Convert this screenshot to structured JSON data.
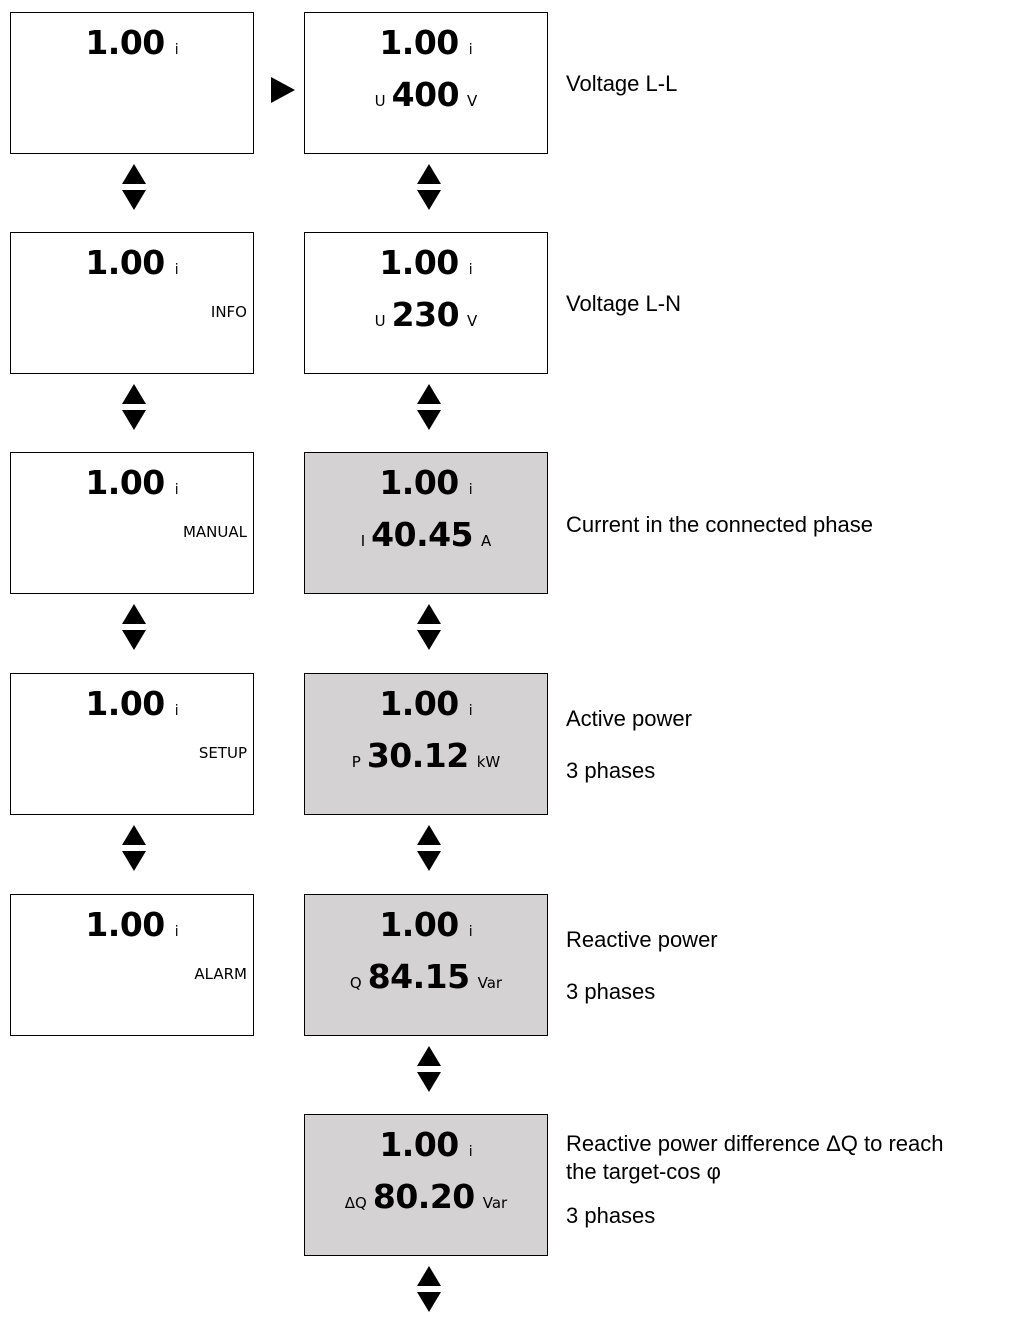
{
  "left_column": [
    {
      "cos": "1.00",
      "ind": "i",
      "label": ""
    },
    {
      "cos": "1.00",
      "ind": "i",
      "label": "INFO"
    },
    {
      "cos": "1.00",
      "ind": "i",
      "label": "MANUAL"
    },
    {
      "cos": "1.00",
      "ind": "i",
      "label": "SETUP"
    },
    {
      "cos": "1.00",
      "ind": "i",
      "label": "ALARM"
    }
  ],
  "right_column": [
    {
      "cos": "1.00",
      "ind": "i",
      "sym": "U",
      "value": "400",
      "unit": "V",
      "desc1": "Voltage L-L",
      "desc2": "",
      "desc3": ""
    },
    {
      "cos": "1.00",
      "ind": "i",
      "sym": "U",
      "value": "230",
      "unit": "V",
      "desc1": "Voltage L-N",
      "desc2": "",
      "desc3": ""
    },
    {
      "cos": "1.00",
      "ind": "i",
      "sym": "I",
      "value": "40.45",
      "unit": "A",
      "desc1": "Current in the connected phase",
      "desc2": "",
      "desc3": ""
    },
    {
      "cos": "1.00",
      "ind": "i",
      "sym": "P",
      "value": "30.12",
      "unit": "kW",
      "desc1": "Active power",
      "desc2": "3 phases",
      "desc3": ""
    },
    {
      "cos": "1.00",
      "ind": "i",
      "sym": "Q",
      "value": "84.15",
      "unit": "Var",
      "desc1": "Reactive power",
      "desc2": "3 phases",
      "desc3": ""
    },
    {
      "cos": "1.00",
      "ind": "i",
      "sym": "ΔQ",
      "value": "80.20",
      "unit": "Var",
      "desc1": "Reactive power difference ΔQ to reach",
      "desc2": "the target-cos φ",
      "desc3": "3 phases"
    }
  ]
}
